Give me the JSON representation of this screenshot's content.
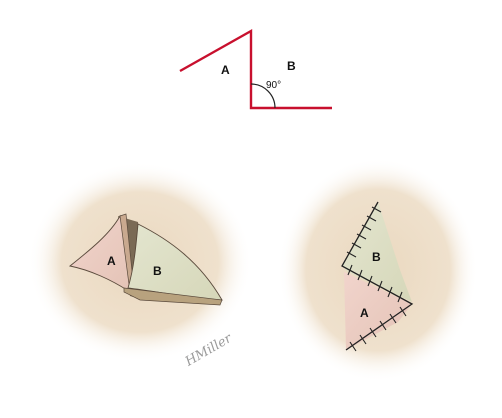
{
  "top_diagram": {
    "label_a": "A",
    "label_b": "B",
    "angle": "90°",
    "line_color": "#c8102e"
  },
  "left_illustration": {
    "label_a": "A",
    "label_b": "B",
    "signature": "HMiller"
  },
  "right_illustration": {
    "label_a": "A",
    "label_b": "B"
  },
  "colors": {
    "skin": "#ecdcc5",
    "flap_a": "#eccbc3",
    "flap_b": "#dfe0c8",
    "suture": "#222222"
  }
}
